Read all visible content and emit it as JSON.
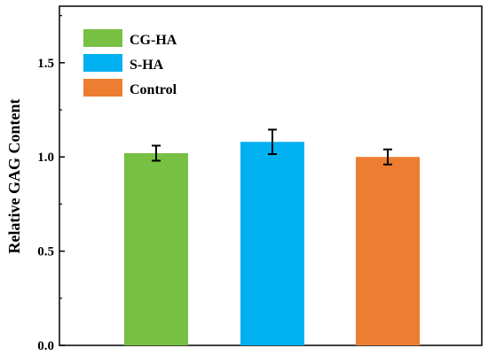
{
  "chart_data": {
    "type": "bar",
    "ylabel": "Relative GAG Content",
    "ylim": [
      0,
      1.8
    ],
    "yticks": [
      0.0,
      0.5,
      1.0,
      1.5
    ],
    "ytick_labels": [
      "0.0",
      "0.5",
      "1.0",
      "1.5"
    ],
    "categories": [
      "CG-HA",
      "S-HA",
      "Control"
    ],
    "values": [
      1.02,
      1.08,
      1.0
    ],
    "errors": [
      0.04,
      0.065,
      0.04
    ],
    "colors": [
      "#77c043",
      "#00b0f0",
      "#ed7d31"
    ],
    "legend": {
      "position": "top-left",
      "entries": [
        "CG-HA",
        "S-HA",
        "Control"
      ]
    },
    "grid": false
  }
}
